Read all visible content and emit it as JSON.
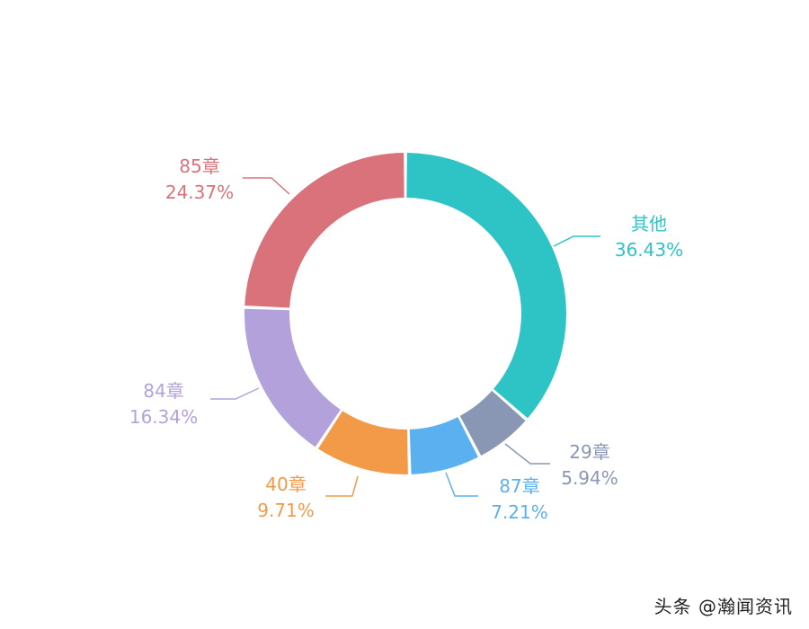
{
  "chart_data": {
    "type": "pie",
    "style": "donut",
    "slices": [
      {
        "label": "其他",
        "value": 36.43,
        "value_text": "36.43%",
        "color": "#2ec4c6"
      },
      {
        "label": "29章",
        "value": 5.94,
        "value_text": "5.94%",
        "color": "#8a97b4"
      },
      {
        "label": "87章",
        "value": 7.21,
        "value_text": "7.21%",
        "color": "#5bb0ef"
      },
      {
        "label": "40章",
        "value": 9.71,
        "value_text": "9.71%",
        "color": "#f39a49"
      },
      {
        "label": "84章",
        "value": 16.34,
        "value_text": "16.34%",
        "color": "#b3a1dc"
      },
      {
        "label": "85章",
        "value": 24.37,
        "value_text": "24.37%",
        "color": "#d9727b"
      }
    ]
  },
  "watermark": "头条 @瀚闻资讯"
}
